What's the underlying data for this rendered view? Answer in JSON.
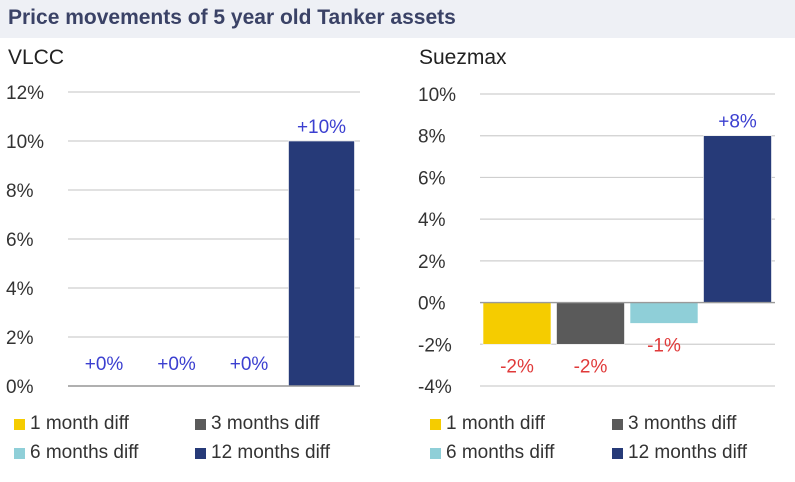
{
  "title": "Price movements of 5 year old Tanker assets",
  "chart_data": [
    {
      "type": "bar",
      "title": "VLCC",
      "categories": [
        "1 month diff",
        "3 months diff",
        "6 months diff",
        "12 months diff"
      ],
      "values": [
        0,
        0,
        0,
        10
      ],
      "data_labels": [
        "+0%",
        "+0%",
        "+0%",
        "+10%"
      ],
      "ylim": [
        0,
        12
      ],
      "yticks": [
        0,
        2,
        4,
        6,
        8,
        10,
        12
      ],
      "ytick_labels": [
        "0%",
        "2%",
        "4%",
        "6%",
        "8%",
        "10%",
        "12%"
      ],
      "grid": true,
      "legend_position": "bottom"
    },
    {
      "type": "bar",
      "title": "Suezmax",
      "categories": [
        "1 month diff",
        "3 months diff",
        "6 months diff",
        "12 months diff"
      ],
      "values": [
        -2,
        -2,
        -1,
        8
      ],
      "data_labels": [
        "-2%",
        "-2%",
        "-1%",
        "+8%"
      ],
      "ylim": [
        -4,
        10
      ],
      "yticks": [
        -4,
        -2,
        0,
        2,
        4,
        6,
        8,
        10
      ],
      "ytick_labels": [
        "-4%",
        "-2%",
        "0%",
        "2%",
        "4%",
        "6%",
        "8%",
        "10%"
      ],
      "grid": true,
      "legend_position": "bottom"
    }
  ],
  "colors": {
    "series": [
      "#f5cc00",
      "#5a5a5a",
      "#8fcfd8",
      "#263a78"
    ],
    "positive_label": "#3b3fd0",
    "negative_label": "#e03a3a",
    "grid": "#cfcfcf",
    "title": "#3a4266"
  }
}
